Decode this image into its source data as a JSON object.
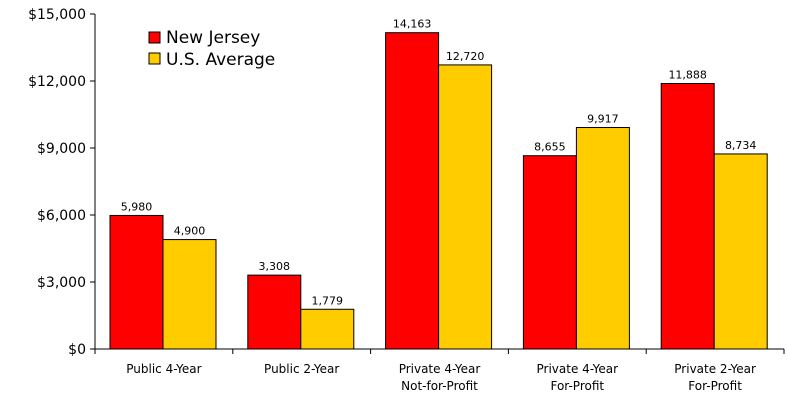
{
  "chart_data": {
    "type": "bar",
    "categories": [
      [
        "Public 4-Year"
      ],
      [
        "Public 2-Year"
      ],
      [
        "Private 4-Year",
        "Not-for-Profit"
      ],
      [
        "Private 4-Year",
        "For-Profit"
      ],
      [
        "Private 2-Year",
        "For-Profit"
      ]
    ],
    "series": [
      {
        "name": "New Jersey",
        "color": "#ff0000",
        "values": [
          5980,
          3308,
          14163,
          8655,
          11888
        ],
        "labels": [
          "5,980",
          "3,308",
          "14,163",
          "8,655",
          "11,888"
        ]
      },
      {
        "name": "U.S. Average",
        "color": "#ffcc00",
        "values": [
          4900,
          1779,
          12720,
          9917,
          8734
        ],
        "labels": [
          "4,900",
          "1,779",
          "12,720",
          "9,917",
          "8,734"
        ]
      }
    ],
    "ylim": [
      0,
      15000
    ],
    "yticks": [
      0,
      3000,
      6000,
      9000,
      12000,
      15000
    ],
    "ytick_labels": [
      "$0",
      "$3,000",
      "$6,000",
      "$9,000",
      "$12,000",
      "$15,000"
    ],
    "grid": false,
    "legend_position": "top-left",
    "title": "",
    "xlabel": "",
    "ylabel": ""
  }
}
